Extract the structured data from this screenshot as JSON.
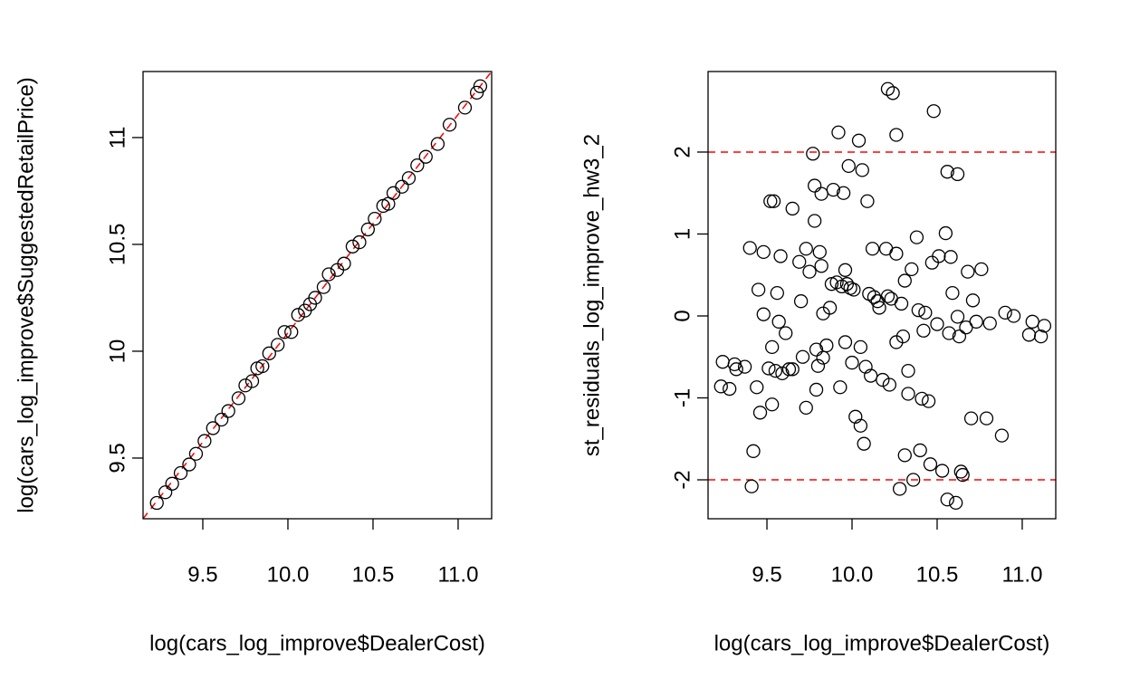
{
  "chart_data": [
    {
      "type": "scatter",
      "x_label": "log(cars_log_improve$DealerCost)",
      "y_label": "log(cars_log_improve$SuggestedRetailPrice)",
      "xlim": [
        9.149,
        11.197
      ],
      "ylim": [
        9.216,
        11.309
      ],
      "xticks": [
        9.5,
        10.0,
        10.5,
        11.0
      ],
      "yticks": [
        9.5,
        10.0,
        10.5,
        11.0
      ],
      "color": "#000000",
      "x": [
        9.23,
        9.28,
        9.32,
        9.37,
        9.42,
        9.46,
        9.51,
        9.56,
        9.61,
        9.65,
        9.71,
        9.75,
        9.79,
        9.82,
        9.85,
        9.89,
        9.94,
        9.98,
        10.02,
        10.06,
        10.1,
        10.13,
        10.16,
        10.21,
        10.24,
        10.29,
        10.33,
        10.38,
        10.42,
        10.47,
        10.51,
        10.56,
        10.59,
        10.62,
        10.67,
        10.71,
        10.76,
        10.81,
        10.88,
        10.95,
        11.04,
        11.11,
        11.13
      ],
      "values": [
        9.29,
        9.34,
        9.38,
        9.43,
        9.47,
        9.52,
        9.58,
        9.64,
        9.68,
        9.72,
        9.78,
        9.84,
        9.86,
        9.92,
        9.93,
        9.99,
        10.03,
        10.09,
        10.09,
        10.17,
        10.19,
        10.22,
        10.25,
        10.3,
        10.36,
        10.38,
        10.41,
        10.49,
        10.51,
        10.57,
        10.62,
        10.68,
        10.69,
        10.74,
        10.77,
        10.81,
        10.87,
        10.91,
        10.97,
        11.06,
        11.14,
        11.21,
        11.24
      ],
      "reference_line": {
        "intercept": -0.134,
        "slope": 1.022,
        "color": "#ff0000",
        "dashed": true
      }
    },
    {
      "type": "scatter",
      "x_label": "log(cars_log_improve$DealerCost)",
      "y_label": "st_residuals_log_improve_hw3_2",
      "xlim": [
        9.154,
        11.197
      ],
      "ylim": [
        -2.475,
        2.983
      ],
      "xticks": [
        9.5,
        10.0,
        10.5,
        11.0
      ],
      "yticks": [
        -2,
        -1,
        0,
        1,
        2
      ],
      "color": "#000000",
      "x": [
        9.23,
        9.24,
        9.28,
        9.31,
        9.32,
        9.37,
        9.4,
        9.41,
        9.42,
        9.44,
        9.45,
        9.46,
        9.48,
        9.48,
        9.51,
        9.52,
        9.53,
        9.53,
        9.54,
        9.55,
        9.56,
        9.57,
        9.58,
        9.59,
        9.61,
        9.63,
        9.65,
        9.65,
        9.69,
        9.7,
        9.71,
        9.73,
        9.73,
        9.75,
        9.77,
        9.78,
        9.78,
        9.79,
        9.79,
        9.8,
        9.81,
        9.82,
        9.82,
        9.83,
        9.83,
        9.85,
        9.87,
        9.88,
        9.89,
        9.91,
        9.92,
        9.93,
        9.94,
        9.95,
        9.96,
        9.96,
        9.97,
        9.98,
        9.99,
        10.0,
        10.01,
        10.02,
        10.04,
        10.05,
        10.05,
        10.06,
        10.07,
        10.08,
        10.09,
        10.1,
        10.11,
        10.12,
        10.13,
        10.15,
        10.16,
        10.18,
        10.2,
        10.21,
        10.21,
        10.22,
        10.23,
        10.24,
        10.26,
        10.26,
        10.26,
        10.28,
        10.29,
        10.3,
        10.31,
        10.31,
        10.33,
        10.33,
        10.35,
        10.36,
        10.38,
        10.39,
        10.4,
        10.41,
        10.42,
        10.43,
        10.45,
        10.46,
        10.47,
        10.48,
        10.5,
        10.51,
        10.53,
        10.55,
        10.56,
        10.56,
        10.57,
        10.58,
        10.59,
        10.61,
        10.62,
        10.62,
        10.63,
        10.64,
        10.65,
        10.67,
        10.68,
        10.7,
        10.71,
        10.73,
        10.76,
        10.79,
        10.81,
        10.88,
        10.9,
        10.95,
        11.04,
        11.06,
        11.11,
        11.13
      ],
      "values": [
        -0.86,
        -0.56,
        -0.89,
        -0.59,
        -0.65,
        -0.62,
        0.83,
        -2.08,
        -1.65,
        -0.87,
        0.32,
        -1.18,
        0.78,
        0.02,
        -0.64,
        1.4,
        -0.38,
        -1.08,
        1.4,
        -0.67,
        0.28,
        -0.07,
        0.73,
        -0.7,
        -0.21,
        -0.65,
        1.31,
        -0.65,
        0.66,
        0.18,
        -0.5,
        -1.12,
        0.82,
        0.54,
        1.98,
        1.16,
        1.59,
        -0.9,
        -0.41,
        -0.61,
        0.78,
        0.61,
        1.49,
        0.03,
        -0.51,
        -0.36,
        0.1,
        0.39,
        1.54,
        0.41,
        2.24,
        -0.87,
        0.36,
        1.5,
        -0.32,
        0.56,
        0.39,
        1.83,
        0.34,
        -0.57,
        0.32,
        -1.23,
        2.14,
        -0.38,
        -1.34,
        1.78,
        -1.56,
        -0.62,
        1.4,
        0.27,
        -0.73,
        0.82,
        0.23,
        0.18,
        0.1,
        -0.78,
        0.82,
        0.24,
        2.77,
        -0.84,
        0.21,
        2.72,
        0.76,
        -0.32,
        2.21,
        -2.11,
        0.15,
        -0.25,
        0.43,
        -1.7,
        -0.67,
        -0.95,
        0.57,
        -2.0,
        0.96,
        0.07,
        -1.64,
        -1.01,
        -0.18,
        0.04,
        -1.04,
        -1.81,
        0.65,
        2.5,
        -0.1,
        0.73,
        -1.89,
        1.01,
        1.76,
        -2.24,
        -0.21,
        0.72,
        0.28,
        -2.28,
        1.73,
        -0.01,
        -0.25,
        -1.9,
        -1.94,
        -0.14,
        0.54,
        -1.25,
        0.19,
        -0.07,
        0.57,
        -1.25,
        -0.09,
        -1.46,
        0.04,
        0.0,
        -0.23,
        -0.07,
        -0.25,
        -0.12
      ],
      "reference_lines": [
        {
          "y": 2,
          "color": "#ff0000",
          "dashed": true
        },
        {
          "y": -2,
          "color": "#ff0000",
          "dashed": true
        }
      ]
    }
  ]
}
